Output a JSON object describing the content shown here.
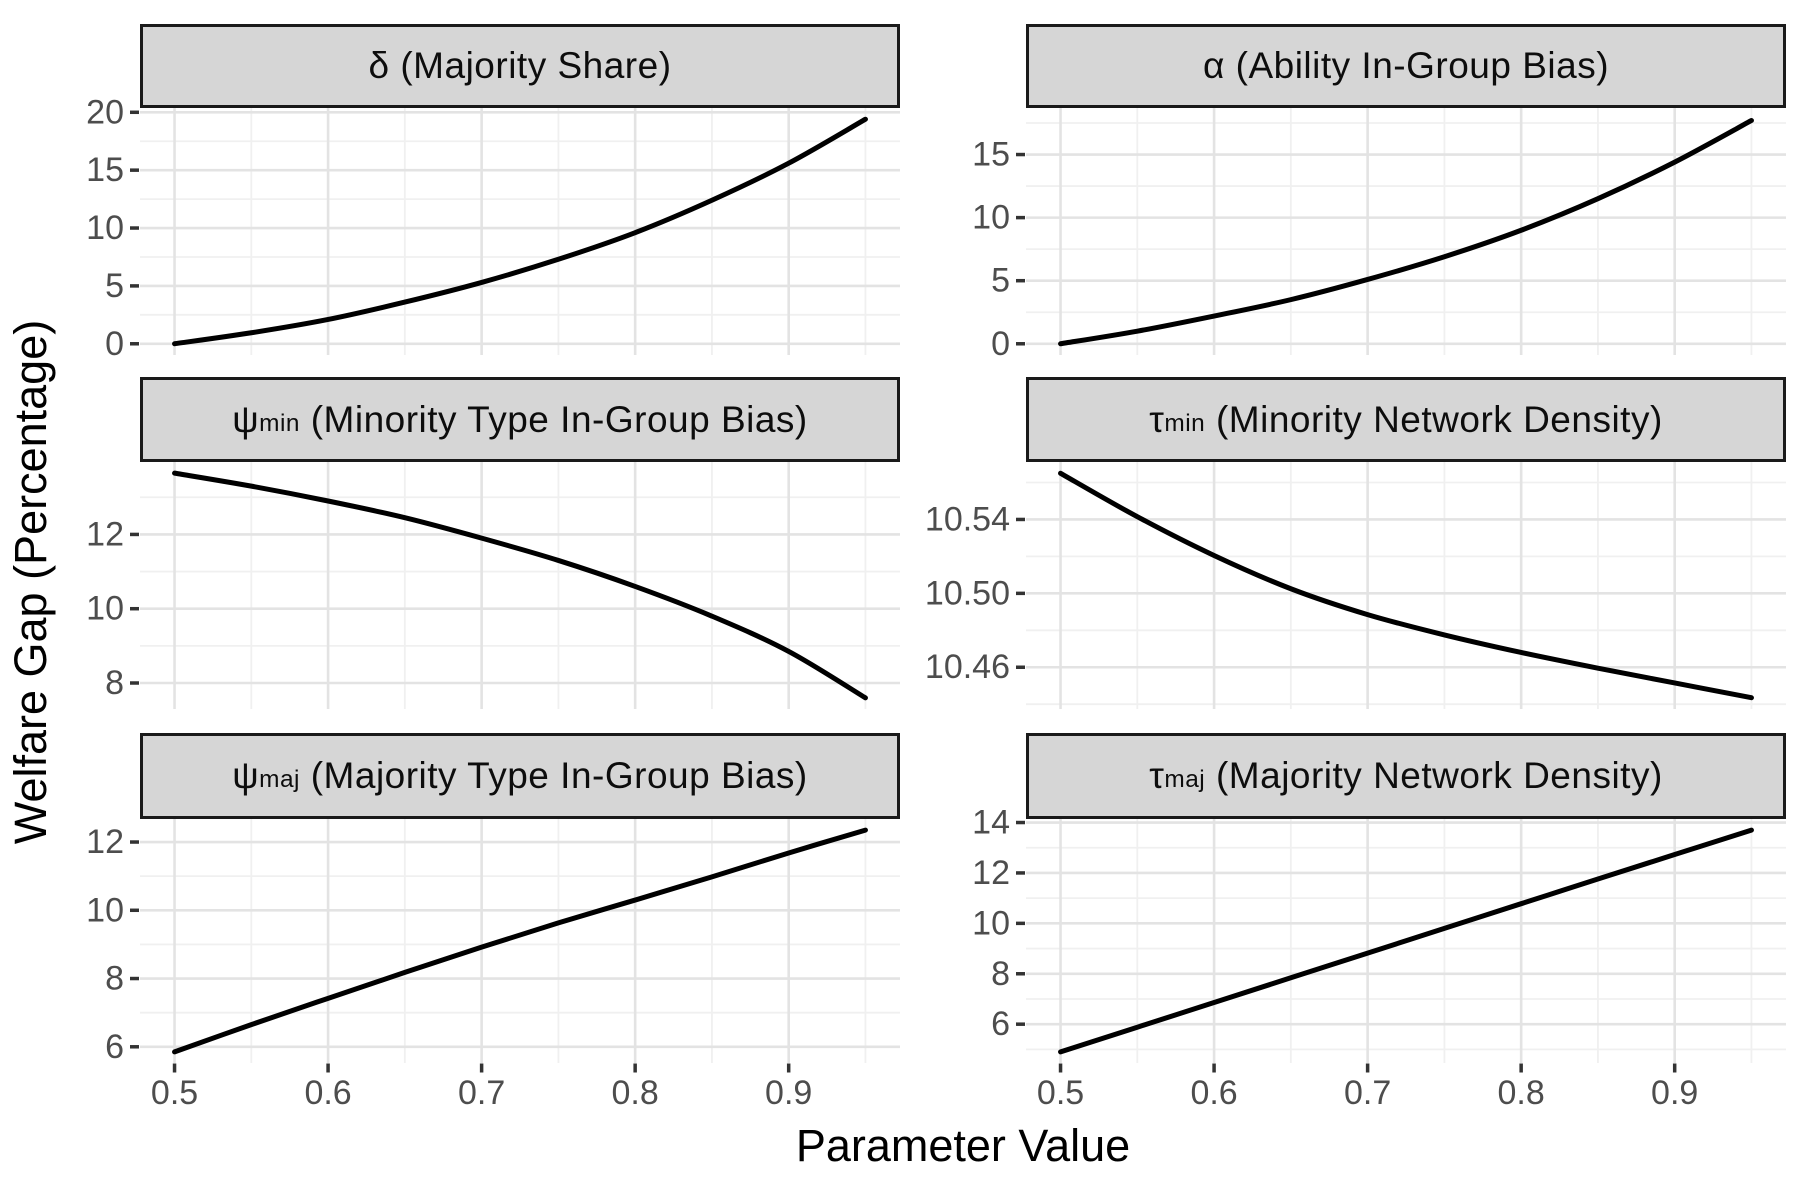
{
  "chart_data": {
    "type": "line",
    "xlabel": "Parameter Value",
    "ylabel": "Welfare Gap (Percentage)",
    "x": [
      0.5,
      0.55,
      0.6,
      0.65,
      0.7,
      0.75,
      0.8,
      0.85,
      0.9,
      0.95
    ],
    "xlim": [
      0.4775,
      0.9725
    ],
    "xticks": [
      0.5,
      0.6,
      0.7,
      0.8,
      0.9
    ],
    "xtick_labels": [
      "0.5",
      "0.6",
      "0.7",
      "0.8",
      "0.9"
    ],
    "x_minor": [
      0.55,
      0.65,
      0.75,
      0.85,
      0.95
    ],
    "grid": "major+minor",
    "legend": "none",
    "line_color": "#000000",
    "strip_fill": "#d6d6d6",
    "major_grid_color": "#e3e3e3",
    "minor_grid_color": "#f0f0f0",
    "tick_label_color": "#4d4d4d",
    "panels": [
      {
        "facet": "delta",
        "title": {
          "symbol": "δ",
          "subscript": "",
          "rest": " (Majority Share)"
        },
        "y": [
          0.0,
          0.95,
          2.1,
          3.6,
          5.3,
          7.3,
          9.6,
          12.4,
          15.6,
          19.4
        ],
        "ylim": [
          -0.97,
          20.37
        ],
        "yticks": [
          0,
          5,
          10,
          15,
          20
        ],
        "ytick_labels": [
          "0",
          "5",
          "10",
          "15",
          "20"
        ],
        "y_minor": [
          2.5,
          7.5,
          12.5,
          17.5
        ]
      },
      {
        "facet": "alpha",
        "title": {
          "symbol": "α",
          "subscript": "",
          "rest": " (Ability In-Group Bias)"
        },
        "y": [
          0.0,
          1.0,
          2.2,
          3.5,
          5.1,
          6.9,
          9.0,
          11.5,
          14.4,
          17.7
        ],
        "ylim": [
          -0.89,
          18.69
        ],
        "yticks": [
          0,
          5,
          10,
          15
        ],
        "ytick_labels": [
          "0",
          "5",
          "10",
          "15"
        ],
        "y_minor": [
          2.5,
          7.5,
          12.5,
          17.5
        ]
      },
      {
        "facet": "psi_min",
        "title": {
          "symbol": "ψ",
          "subscript": "min",
          "rest": " (Minority Type In-Group Bias)"
        },
        "y": [
          13.65,
          13.3,
          12.9,
          12.45,
          11.9,
          11.3,
          10.6,
          9.8,
          8.85,
          7.6
        ],
        "ylim": [
          7.3,
          13.95
        ],
        "yticks": [
          8,
          10,
          12
        ],
        "ytick_labels": [
          "8",
          "10",
          "12"
        ],
        "y_minor": [
          9,
          11,
          13
        ]
      },
      {
        "facet": "tau_min",
        "title": {
          "symbol": "τ",
          "subscript": "min",
          "rest": " (Minority Network Density)"
        },
        "y": [
          10.565,
          10.5415,
          10.5205,
          10.5025,
          10.4885,
          10.4775,
          10.468,
          10.4595,
          10.4515,
          10.4435
        ],
        "ylim": [
          10.4374,
          10.5711
        ],
        "yticks": [
          10.46,
          10.5,
          10.54
        ],
        "ytick_labels": [
          "10.46",
          "10.50",
          "10.54"
        ],
        "y_minor": [
          10.44,
          10.48,
          10.52,
          10.56
        ]
      },
      {
        "facet": "psi_maj",
        "title": {
          "symbol": "ψ",
          "subscript": "maj",
          "rest": " (Majority Type In-Group Bias)"
        },
        "y": [
          5.85,
          6.65,
          7.42,
          8.18,
          8.92,
          9.63,
          10.3,
          10.98,
          11.68,
          12.35
        ],
        "ylim": [
          5.525,
          12.675
        ],
        "yticks": [
          6,
          8,
          10,
          12
        ],
        "ytick_labels": [
          "6",
          "8",
          "10",
          "12"
        ],
        "y_minor": [
          7,
          9,
          11
        ]
      },
      {
        "facet": "tau_maj",
        "title": {
          "symbol": "τ",
          "subscript": "maj",
          "rest": " (Majority Network Density)"
        },
        "y": [
          4.9,
          5.88,
          6.86,
          7.84,
          8.82,
          9.8,
          10.78,
          11.76,
          12.73,
          13.7
        ],
        "ylim": [
          4.46,
          14.14
        ],
        "yticks": [
          6,
          8,
          10,
          12,
          14
        ],
        "ytick_labels": [
          "6",
          "8",
          "10",
          "12",
          "14"
        ],
        "y_minor": [
          5,
          7,
          9,
          11,
          13
        ]
      }
    ]
  }
}
